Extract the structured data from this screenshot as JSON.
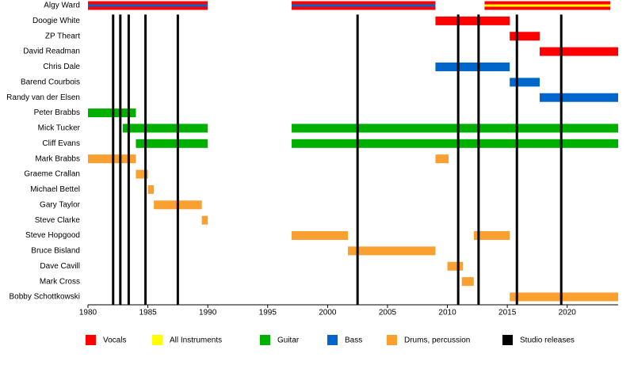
{
  "chart_data": {
    "type": "timeline",
    "categories": [
      "Algy Ward",
      "Doogie White",
      "ZP Theart",
      "David Readman",
      "Chris Dale",
      "Barend Courbois",
      "Randy van der Elsen",
      "Peter Brabbs",
      "Mick Tucker",
      "Cliff Evans",
      "Mark Brabbs",
      "Graeme Crallan",
      "Michael Bettel",
      "Gary Taylor",
      "Steve Clarke",
      "Steve Hopgood",
      "Bruce Bisland",
      "Dave Cavill",
      "Mark Cross",
      "Bobby Schottkowski"
    ],
    "series": [
      {
        "name": "Vocals",
        "color": "#ff0000",
        "values": [
          [
            [
              1980,
              1990
            ],
            [
              1997,
              2009
            ],
            [
              2013.1,
              2023.6
            ]
          ],
          [
            [
              2009,
              2015.2
            ]
          ],
          [
            [
              2015.2,
              2017.7
            ]
          ],
          [
            [
              2017.7,
              2024.25
            ]
          ],
          null,
          null,
          null,
          null,
          null,
          null,
          null,
          null,
          null,
          null,
          null,
          null,
          null,
          null,
          null,
          null
        ]
      },
      {
        "name": "All Instruments",
        "color": "#ffff00",
        "values": [
          [
            [
              2013.1,
              2023.6
            ]
          ],
          null,
          null,
          null,
          null,
          null,
          null,
          null,
          null,
          null,
          null,
          null,
          null,
          null,
          null,
          null,
          null,
          null,
          null,
          null
        ]
      },
      {
        "name": "Guitar",
        "color": "#00b000",
        "values": [
          null,
          null,
          null,
          null,
          null,
          null,
          null,
          [
            [
              1980,
              1984
            ]
          ],
          [
            [
              1982.9,
              1990
            ],
            [
              1997,
              2024.25
            ]
          ],
          [
            [
              1984,
              1990
            ],
            [
              1997,
              2024.25
            ]
          ],
          null,
          null,
          null,
          null,
          null,
          null,
          null,
          null,
          null,
          null
        ]
      },
      {
        "name": "Bass",
        "color": "#0066cc",
        "values": [
          [
            [
              1980,
              1990
            ],
            [
              1997,
              2009
            ]
          ],
          null,
          null,
          null,
          [
            [
              2009,
              2015.2
            ]
          ],
          [
            [
              2015.2,
              2017.7
            ]
          ],
          [
            [
              2017.7,
              2024.25
            ]
          ],
          null,
          null,
          null,
          null,
          null,
          null,
          null,
          null,
          null,
          null,
          null,
          null,
          null
        ]
      },
      {
        "name": "Drums, percussion",
        "color": "#f9a030",
        "values": [
          null,
          null,
          null,
          null,
          null,
          null,
          null,
          null,
          null,
          null,
          [
            [
              1980,
              1984
            ],
            [
              2009,
              2010.1
            ]
          ],
          [
            [
              1984,
              1985
            ]
          ],
          [
            [
              1985,
              1985.5
            ]
          ],
          [
            [
              1985.5,
              1989.5
            ]
          ],
          [
            [
              1989.5,
              1990
            ]
          ],
          [
            [
              1997,
              2001.7
            ],
            [
              2012.2,
              2015.2
            ]
          ],
          [
            [
              2001.7,
              2009
            ]
          ],
          [
            [
              2010,
              2011.3
            ]
          ],
          [
            [
              2011.2,
              2012.2
            ]
          ],
          [
            [
              2015.2,
              2024.25
            ]
          ]
        ]
      }
    ],
    "releases": {
      "name": "Studio releases",
      "color": "#000000",
      "values": [
        1982.1,
        1982.7,
        1983.4,
        1984.8,
        1987.5,
        2002.5,
        2010.9,
        2012.6,
        2015.8,
        2019.5
      ]
    },
    "xlim": [
      1980,
      2024.25
    ],
    "xticks": [
      1980,
      1985,
      1990,
      1995,
      2000,
      2005,
      2010,
      2015,
      2020
    ]
  }
}
